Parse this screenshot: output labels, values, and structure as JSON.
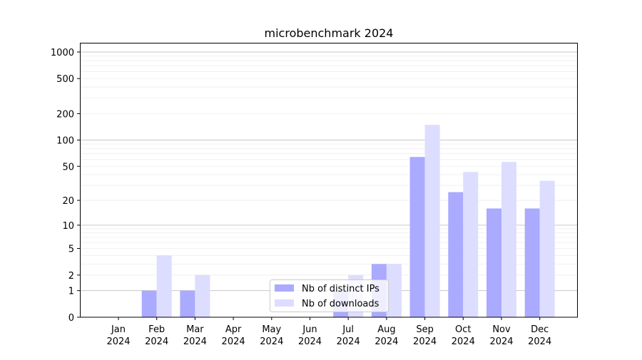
{
  "chart_data": {
    "type": "bar",
    "title": "microbenchmark 2024",
    "xlabel": "",
    "ylabel": "",
    "yscale": "symlog",
    "ylim": [
      0,
      1300
    ],
    "yticks": [
      0,
      1,
      2,
      5,
      10,
      20,
      50,
      100,
      200,
      500,
      1000
    ],
    "grid": true,
    "legend_position": "lower-center",
    "categories": [
      "Jan\n2024",
      "Feb\n2024",
      "Mar\n2024",
      "Apr\n2024",
      "May\n2024",
      "Jun\n2024",
      "Jul\n2024",
      "Aug\n2024",
      "Sep\n2024",
      "Oct\n2024",
      "Nov\n2024",
      "Dec\n2024"
    ],
    "series": [
      {
        "name": "Nb of distinct IPs",
        "color": "#aaaaff",
        "values": [
          0,
          1,
          1,
          0,
          0,
          0,
          1,
          3,
          64,
          25,
          16,
          16
        ]
      },
      {
        "name": "Nb of downloads",
        "color": "#ddddff",
        "values": [
          0,
          4,
          2,
          0,
          0,
          0,
          2,
          3,
          149,
          43,
          56,
          34
        ]
      }
    ]
  }
}
